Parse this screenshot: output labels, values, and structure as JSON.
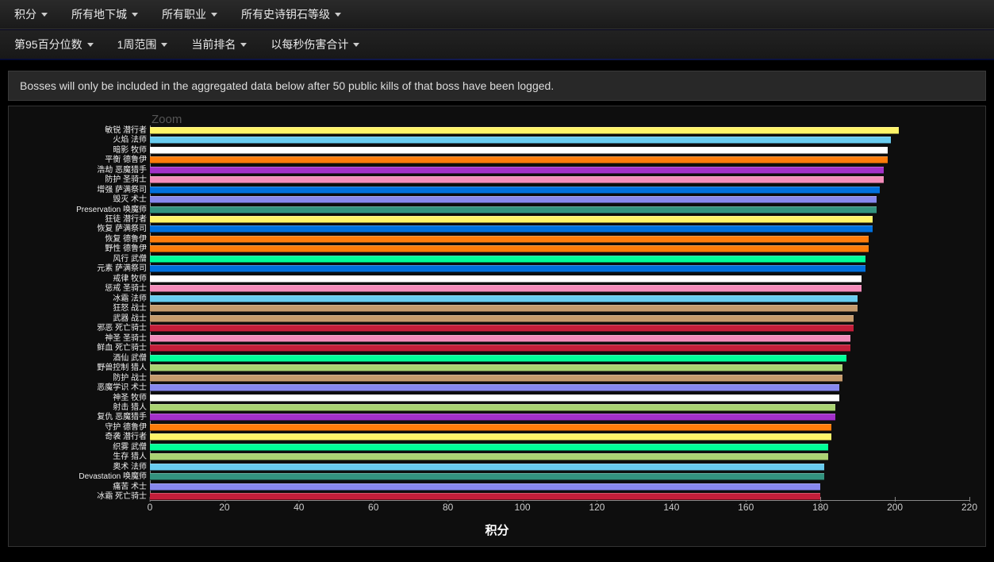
{
  "filters_top": [
    {
      "label": "积分"
    },
    {
      "label": "所有地下城"
    },
    {
      "label": "所有职业"
    },
    {
      "label": "所有史诗钥石等级"
    }
  ],
  "filters_second": [
    {
      "label": "第95百分位数"
    },
    {
      "label": "1周范围"
    },
    {
      "label": "当前排名"
    },
    {
      "label": "以每秒伤害合计"
    }
  ],
  "notice_text": "Bosses will only be included in the aggregated data below after 50 public kills of that boss have been logged.",
  "zoom_label": "Zoom",
  "chart": {
    "type": "horizontal-bar",
    "x_title": "积分",
    "x_min": 0,
    "x_max": 220,
    "x_tick_step": 20,
    "x_ticks": [
      "0",
      "20",
      "40",
      "60",
      "80",
      "100",
      "120",
      "140",
      "160",
      "180",
      "200",
      "220"
    ],
    "background_color": "#0e0e0e",
    "axis_color": "#888888",
    "label_color": "#eeeeee",
    "label_fontsize": 10,
    "tick_fontsize": 12,
    "bars": [
      {
        "label": "敏锐 潜行者",
        "value": 201,
        "color": "#fff468"
      },
      {
        "label": "火焰 法师",
        "value": 199,
        "color": "#68ccef"
      },
      {
        "label": "暗影 牧师",
        "value": 198,
        "color": "#ffffff"
      },
      {
        "label": "平衡 德鲁伊",
        "value": 198,
        "color": "#ff7c0a"
      },
      {
        "label": "浩劫 恶魔猎手",
        "value": 197,
        "color": "#a330c9"
      },
      {
        "label": "防护 圣骑士",
        "value": 197,
        "color": "#f48cba"
      },
      {
        "label": "增强 萨满祭司",
        "value": 196,
        "color": "#0070dd"
      },
      {
        "label": "毁灭 术士",
        "value": 195,
        "color": "#8788ee"
      },
      {
        "label": "Preservation 唤魔师",
        "value": 195,
        "color": "#33937f"
      },
      {
        "label": "狂徒 潜行者",
        "value": 194,
        "color": "#fff468"
      },
      {
        "label": "恢复 萨满祭司",
        "value": 194,
        "color": "#0070dd"
      },
      {
        "label": "恢复 德鲁伊",
        "value": 193,
        "color": "#ff7c0a"
      },
      {
        "label": "野性 德鲁伊",
        "value": 193,
        "color": "#ff7c0a"
      },
      {
        "label": "风行 武僧",
        "value": 192,
        "color": "#00ff98"
      },
      {
        "label": "元素 萨满祭司",
        "value": 192,
        "color": "#0070dd"
      },
      {
        "label": "戒律 牧师",
        "value": 191,
        "color": "#ffffff"
      },
      {
        "label": "惩戒 圣骑士",
        "value": 191,
        "color": "#f48cba"
      },
      {
        "label": "冰霜 法师",
        "value": 190,
        "color": "#68ccef"
      },
      {
        "label": "狂怒 战士",
        "value": 190,
        "color": "#c69b6d"
      },
      {
        "label": "武器 战士",
        "value": 189,
        "color": "#c69b6d"
      },
      {
        "label": "邪恶 死亡骑士",
        "value": 189,
        "color": "#c41e3a"
      },
      {
        "label": "神圣 圣骑士",
        "value": 188,
        "color": "#f48cba"
      },
      {
        "label": "鲜血 死亡骑士",
        "value": 188,
        "color": "#c41e3a"
      },
      {
        "label": "酒仙 武僧",
        "value": 187,
        "color": "#00ff98"
      },
      {
        "label": "野兽控制 猎人",
        "value": 186,
        "color": "#aad372"
      },
      {
        "label": "防护 战士",
        "value": 186,
        "color": "#c69b6d"
      },
      {
        "label": "恶魔学识 术士",
        "value": 185,
        "color": "#8788ee"
      },
      {
        "label": "神圣 牧师",
        "value": 185,
        "color": "#ffffff"
      },
      {
        "label": "射击 猎人",
        "value": 184,
        "color": "#aad372"
      },
      {
        "label": "复仇 恶魔猎手",
        "value": 184,
        "color": "#a330c9"
      },
      {
        "label": "守护 德鲁伊",
        "value": 183,
        "color": "#ff7c0a"
      },
      {
        "label": "奇袭 潜行者",
        "value": 183,
        "color": "#fff468"
      },
      {
        "label": "织雾 武僧",
        "value": 182,
        "color": "#00ff98"
      },
      {
        "label": "生存 猎人",
        "value": 182,
        "color": "#aad372"
      },
      {
        "label": "奥术 法师",
        "value": 181,
        "color": "#68ccef"
      },
      {
        "label": "Devastation 唤魔师",
        "value": 181,
        "color": "#33937f"
      },
      {
        "label": "痛苦 术士",
        "value": 180,
        "color": "#8788ee"
      },
      {
        "label": "冰霜 死亡骑士",
        "value": 180,
        "color": "#c41e3a"
      }
    ]
  }
}
